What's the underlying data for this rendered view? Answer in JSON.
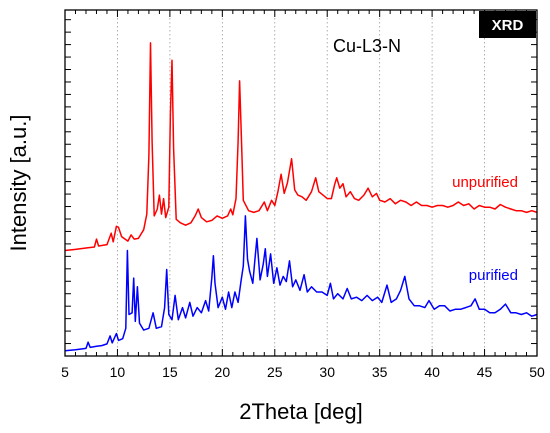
{
  "chart_data": {
    "type": "line",
    "title": "Cu-L3-N",
    "badge": "XRD",
    "xlabel": "2Theta [deg]",
    "ylabel": "Intensity [a.u.]",
    "xlim": [
      5,
      50
    ],
    "ylim": [
      0,
      100
    ],
    "x_ticks": [
      5,
      10,
      15,
      20,
      25,
      30,
      35,
      40,
      45,
      50
    ],
    "x_tick_labels": [
      "5",
      "10",
      "15",
      "20",
      "25",
      "30",
      "35",
      "40",
      "45",
      "50"
    ],
    "y_tick_labels_shown": false,
    "grid": "vertical-dotted",
    "series": [
      {
        "name": "unpurified",
        "color": "#ff0000",
        "points": [
          [
            5.0,
            30.5
          ],
          [
            6.0,
            30.8
          ],
          [
            7.0,
            31.2
          ],
          [
            7.8,
            31.5
          ],
          [
            8.0,
            33.8
          ],
          [
            8.2,
            31.8
          ],
          [
            9.0,
            32.2
          ],
          [
            9.4,
            35.5
          ],
          [
            9.6,
            33.0
          ],
          [
            9.9,
            37.5
          ],
          [
            10.1,
            37.2
          ],
          [
            10.4,
            34.5
          ],
          [
            11.0,
            33.2
          ],
          [
            11.3,
            35.0
          ],
          [
            11.6,
            33.8
          ],
          [
            12.0,
            34.0
          ],
          [
            12.5,
            36.5
          ],
          [
            12.8,
            41.0
          ],
          [
            13.0,
            58.0
          ],
          [
            13.15,
            90.5
          ],
          [
            13.3,
            62.0
          ],
          [
            13.5,
            40.5
          ],
          [
            13.8,
            42.5
          ],
          [
            14.0,
            46.5
          ],
          [
            14.2,
            41.0
          ],
          [
            14.4,
            45.5
          ],
          [
            14.6,
            40.0
          ],
          [
            14.9,
            43.0
          ],
          [
            15.05,
            70.0
          ],
          [
            15.2,
            85.5
          ],
          [
            15.35,
            60.0
          ],
          [
            15.6,
            39.5
          ],
          [
            16.0,
            38.5
          ],
          [
            16.5,
            37.8
          ],
          [
            17.0,
            38.5
          ],
          [
            17.4,
            40.5
          ],
          [
            17.7,
            42.5
          ],
          [
            18.0,
            40.0
          ],
          [
            18.5,
            38.8
          ],
          [
            19.0,
            39.2
          ],
          [
            19.5,
            40.5
          ],
          [
            20.0,
            39.8
          ],
          [
            20.5,
            40.5
          ],
          [
            20.8,
            42.5
          ],
          [
            21.0,
            40.8
          ],
          [
            21.3,
            45.5
          ],
          [
            21.5,
            62.0
          ],
          [
            21.65,
            79.5
          ],
          [
            21.8,
            65.0
          ],
          [
            22.0,
            45.0
          ],
          [
            22.5,
            42.0
          ],
          [
            23.0,
            41.5
          ],
          [
            23.5,
            42.0
          ],
          [
            24.0,
            44.5
          ],
          [
            24.3,
            42.0
          ],
          [
            24.7,
            45.0
          ],
          [
            25.0,
            43.5
          ],
          [
            25.3,
            47.5
          ],
          [
            25.6,
            52.5
          ],
          [
            25.9,
            47.0
          ],
          [
            26.2,
            50.0
          ],
          [
            26.6,
            57.0
          ],
          [
            26.9,
            48.0
          ],
          [
            27.2,
            46.5
          ],
          [
            27.6,
            46.0
          ],
          [
            28.0,
            45.0
          ],
          [
            28.5,
            47.5
          ],
          [
            28.9,
            51.5
          ],
          [
            29.2,
            47.5
          ],
          [
            29.6,
            46.5
          ],
          [
            30.0,
            45.5
          ],
          [
            30.4,
            45.5
          ],
          [
            30.7,
            49.5
          ],
          [
            30.9,
            51.5
          ],
          [
            31.2,
            48.5
          ],
          [
            31.5,
            49.8
          ],
          [
            31.8,
            46.0
          ],
          [
            32.2,
            47.5
          ],
          [
            32.6,
            45.5
          ],
          [
            33.0,
            45.0
          ],
          [
            33.5,
            46.5
          ],
          [
            33.9,
            48.5
          ],
          [
            34.3,
            46.0
          ],
          [
            34.7,
            47.0
          ],
          [
            35.0,
            45.0
          ],
          [
            35.5,
            44.5
          ],
          [
            36.0,
            45.5
          ],
          [
            36.5,
            44.0
          ],
          [
            37.0,
            45.0
          ],
          [
            37.5,
            44.5
          ],
          [
            38.0,
            43.5
          ],
          [
            38.5,
            44.5
          ],
          [
            39.0,
            43.5
          ],
          [
            39.5,
            43.5
          ],
          [
            40.0,
            43.0
          ],
          [
            40.5,
            43.5
          ],
          [
            41.0,
            43.5
          ],
          [
            41.5,
            43.0
          ],
          [
            42.0,
            43.5
          ],
          [
            42.5,
            44.5
          ],
          [
            43.0,
            43.5
          ],
          [
            43.5,
            44.0
          ],
          [
            44.0,
            42.5
          ],
          [
            44.5,
            43.5
          ],
          [
            45.0,
            43.0
          ],
          [
            45.5,
            43.0
          ],
          [
            46.0,
            42.5
          ],
          [
            46.5,
            43.8
          ],
          [
            47.0,
            43.0
          ],
          [
            47.5,
            42.5
          ],
          [
            48.0,
            42.0
          ],
          [
            48.5,
            42.0
          ],
          [
            49.0,
            41.5
          ],
          [
            49.5,
            42.0
          ],
          [
            50.0,
            41.5
          ]
        ]
      },
      {
        "name": "purified",
        "color": "#0000ff",
        "points": [
          [
            5.0,
            1.5
          ],
          [
            6.0,
            1.8
          ],
          [
            7.0,
            2.2
          ],
          [
            7.2,
            4.0
          ],
          [
            7.4,
            2.5
          ],
          [
            8.0,
            2.8
          ],
          [
            8.5,
            3.0
          ],
          [
            9.0,
            3.5
          ],
          [
            9.3,
            5.8
          ],
          [
            9.5,
            3.8
          ],
          [
            9.9,
            6.5
          ],
          [
            10.1,
            4.5
          ],
          [
            10.5,
            5.0
          ],
          [
            10.8,
            8.0
          ],
          [
            10.95,
            30.5
          ],
          [
            11.1,
            12.0
          ],
          [
            11.4,
            12.5
          ],
          [
            11.55,
            22.5
          ],
          [
            11.7,
            10.0
          ],
          [
            11.9,
            20.0
          ],
          [
            12.1,
            9.5
          ],
          [
            12.5,
            7.5
          ],
          [
            13.0,
            8.0
          ],
          [
            13.4,
            12.5
          ],
          [
            13.7,
            8.0
          ],
          [
            14.2,
            8.5
          ],
          [
            14.5,
            14.0
          ],
          [
            14.7,
            25.0
          ],
          [
            14.9,
            12.0
          ],
          [
            15.2,
            10.5
          ],
          [
            15.5,
            17.5
          ],
          [
            15.8,
            10.5
          ],
          [
            16.2,
            14.0
          ],
          [
            16.5,
            11.0
          ],
          [
            16.9,
            15.5
          ],
          [
            17.2,
            11.5
          ],
          [
            17.6,
            14.0
          ],
          [
            18.0,
            12.5
          ],
          [
            18.4,
            16.0
          ],
          [
            18.7,
            13.0
          ],
          [
            19.0,
            22.5
          ],
          [
            19.15,
            29.0
          ],
          [
            19.3,
            21.0
          ],
          [
            19.6,
            14.0
          ],
          [
            20.0,
            17.0
          ],
          [
            20.3,
            13.5
          ],
          [
            20.6,
            18.5
          ],
          [
            20.9,
            14.0
          ],
          [
            21.2,
            18.5
          ],
          [
            21.5,
            15.5
          ],
          [
            21.8,
            22.0
          ],
          [
            22.0,
            26.0
          ],
          [
            22.2,
            40.5
          ],
          [
            22.4,
            28.0
          ],
          [
            22.6,
            24.5
          ],
          [
            22.9,
            21.0
          ],
          [
            23.1,
            27.5
          ],
          [
            23.3,
            34.0
          ],
          [
            23.6,
            22.0
          ],
          [
            23.9,
            26.5
          ],
          [
            24.1,
            31.0
          ],
          [
            24.3,
            23.0
          ],
          [
            24.6,
            29.5
          ],
          [
            24.9,
            21.0
          ],
          [
            25.2,
            25.5
          ],
          [
            25.5,
            20.5
          ],
          [
            25.8,
            23.0
          ],
          [
            26.1,
            21.5
          ],
          [
            26.4,
            27.5
          ],
          [
            26.7,
            20.0
          ],
          [
            27.0,
            22.0
          ],
          [
            27.4,
            19.0
          ],
          [
            27.8,
            23.5
          ],
          [
            28.1,
            18.5
          ],
          [
            28.5,
            20.0
          ],
          [
            29.0,
            18.5
          ],
          [
            29.5,
            18.5
          ],
          [
            30.0,
            17.5
          ],
          [
            30.3,
            21.0
          ],
          [
            30.6,
            16.5
          ],
          [
            31.0,
            18.0
          ],
          [
            31.5,
            16.5
          ],
          [
            31.9,
            19.5
          ],
          [
            32.3,
            16.5
          ],
          [
            32.8,
            17.0
          ],
          [
            33.3,
            16.0
          ],
          [
            33.8,
            17.5
          ],
          [
            34.3,
            16.0
          ],
          [
            34.8,
            17.0
          ],
          [
            35.2,
            15.5
          ],
          [
            35.7,
            20.5
          ],
          [
            36.1,
            15.5
          ],
          [
            36.6,
            16.5
          ],
          [
            37.0,
            19.0
          ],
          [
            37.4,
            23.0
          ],
          [
            37.8,
            16.5
          ],
          [
            38.3,
            14.5
          ],
          [
            38.8,
            14.5
          ],
          [
            39.3,
            14.0
          ],
          [
            39.7,
            16.0
          ],
          [
            40.2,
            13.5
          ],
          [
            40.7,
            14.5
          ],
          [
            41.2,
            14.5
          ],
          [
            41.7,
            13.0
          ],
          [
            42.2,
            13.5
          ],
          [
            42.7,
            13.5
          ],
          [
            43.2,
            14.0
          ],
          [
            43.7,
            14.5
          ],
          [
            44.1,
            16.5
          ],
          [
            44.5,
            13.5
          ],
          [
            45.0,
            13.5
          ],
          [
            45.5,
            12.5
          ],
          [
            46.0,
            12.5
          ],
          [
            46.5,
            13.5
          ],
          [
            47.0,
            15.0
          ],
          [
            47.5,
            12.5
          ],
          [
            48.0,
            12.5
          ],
          [
            48.5,
            12.0
          ],
          [
            49.0,
            12.5
          ],
          [
            49.5,
            11.5
          ],
          [
            50.0,
            12.0
          ]
        ]
      }
    ]
  }
}
